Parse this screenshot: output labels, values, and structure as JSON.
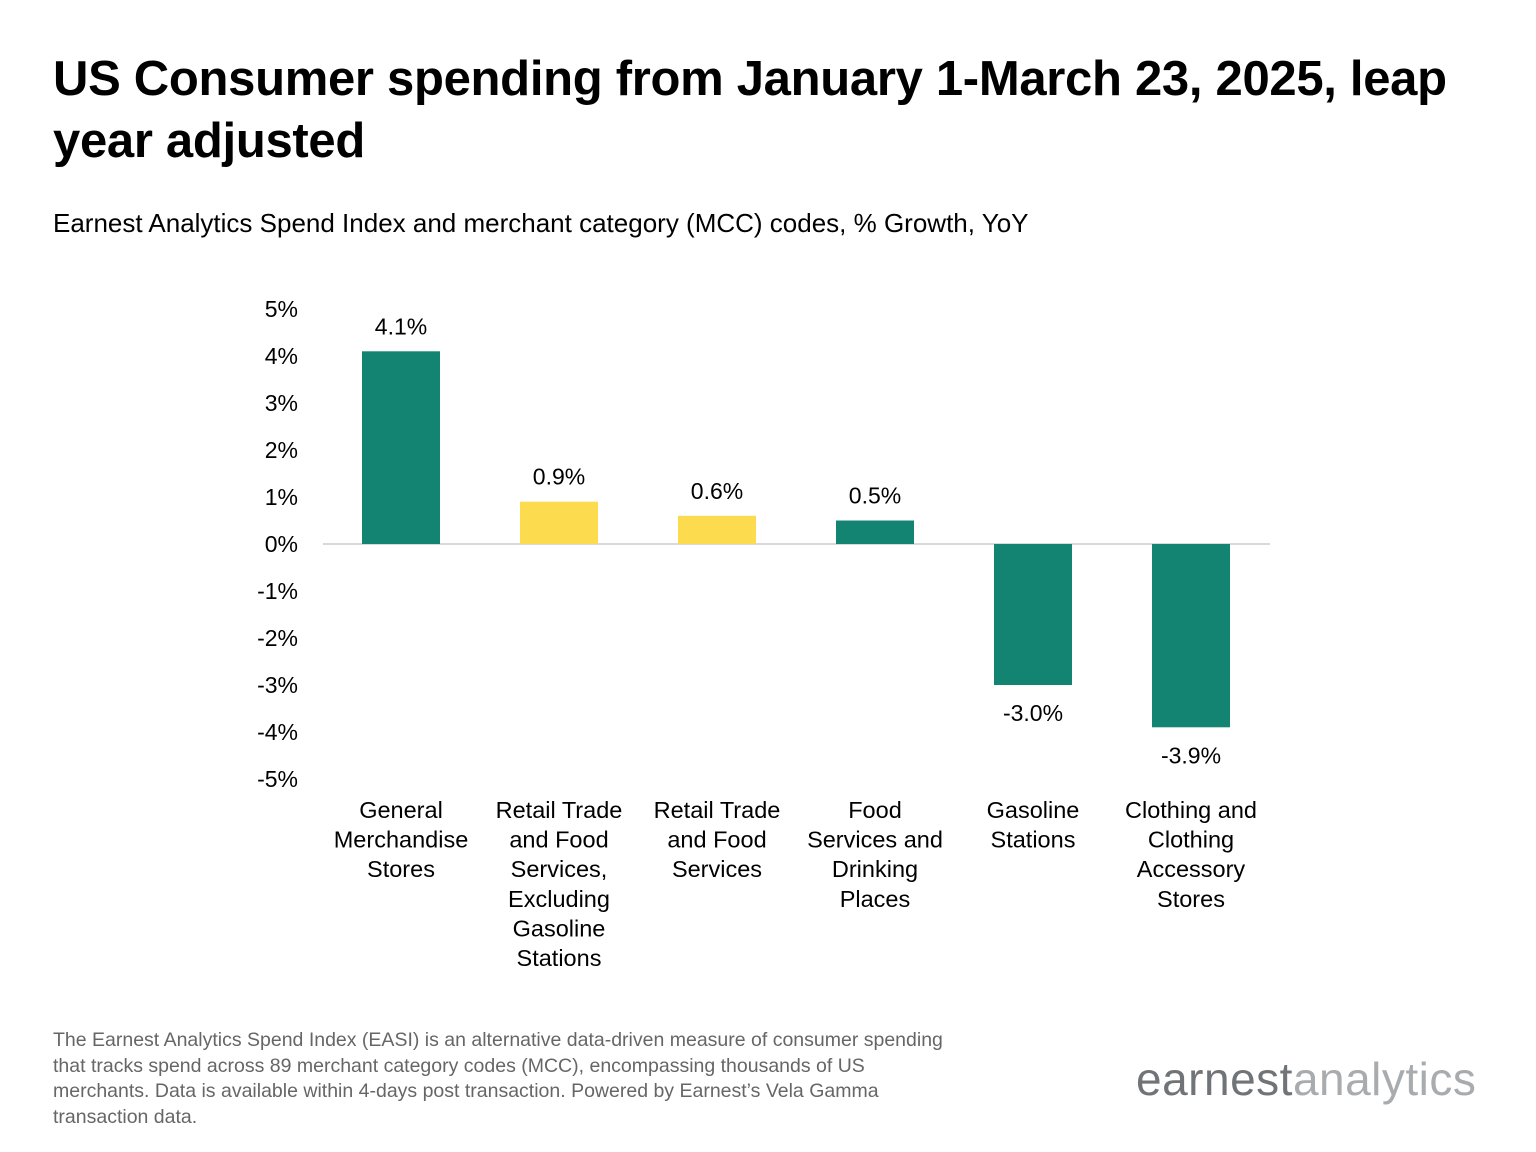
{
  "chart_data": {
    "type": "bar",
    "title": "US Consumer spending from January 1-March 23, 2025, leap year adjusted",
    "subtitle": "Earnest Analytics Spend Index and merchant category (MCC) codes, % Growth, YoY",
    "xlabel": "",
    "ylabel": "",
    "ylim": [
      -5,
      5
    ],
    "yticks": [
      5,
      4,
      3,
      2,
      1,
      0,
      -1,
      -2,
      -3,
      -4,
      -5
    ],
    "ytick_labels": [
      "5%",
      "4%",
      "3%",
      "2%",
      "1%",
      "0%",
      "-1%",
      "-2%",
      "-3%",
      "-4%",
      "-5%"
    ],
    "grid": false,
    "categories": [
      [
        "General",
        "Merchandise",
        "Stores"
      ],
      [
        "Retail Trade",
        "and Food",
        "Services,",
        "Excluding",
        "Gasoline",
        "Stations"
      ],
      [
        "Retail Trade",
        "and Food",
        "Services"
      ],
      [
        "Food",
        "Services and",
        "Drinking",
        "Places"
      ],
      [
        "Gasoline",
        "Stations"
      ],
      [
        "Clothing and",
        "Clothing",
        "Accessory",
        "Stores"
      ]
    ],
    "values": [
      4.1,
      0.9,
      0.6,
      0.5,
      -3.0,
      -3.9
    ],
    "data_labels": [
      "4.1%",
      "0.9%",
      "0.6%",
      "0.5%",
      "-3.0%",
      "-3.9%"
    ],
    "bar_colors": [
      "#138472",
      "#FDDB4F",
      "#FDDB4F",
      "#138472",
      "#138472",
      "#138472"
    ]
  },
  "footnote": "The Earnest Analytics Spend Index (EASI) is an alternative data-driven measure of consumer spending that tracks spend across 89 merchant category codes (MCC), encompassing thousands of US merchants. Data is available within 4-days post transaction. Powered by Earnest’s Vela Gamma transaction data.",
  "logo": {
    "part1": "earnest",
    "part2": "analytics"
  },
  "colors": {
    "teal": "#138472",
    "yellow": "#FDDB4F",
    "axis": "#d9d9d9"
  }
}
